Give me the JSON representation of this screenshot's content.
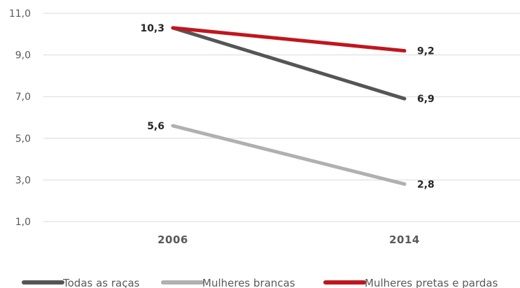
{
  "chart_data": {
    "type": "line",
    "categories": [
      "2006",
      "2014"
    ],
    "series": [
      {
        "name": "Todas as raças",
        "values": [
          10.3,
          6.9
        ],
        "labels": [
          "10,3",
          "6,9"
        ],
        "color": "#555555"
      },
      {
        "name": "Mulheres brancas",
        "values": [
          5.6,
          2.8
        ],
        "labels": [
          "5,6",
          "2,8"
        ],
        "color": "#b0b0b0"
      },
      {
        "name": "Mulheres pretas e pardas",
        "values": [
          10.3,
          9.2
        ],
        "labels": [
          "",
          "9,2"
        ],
        "color": "#c0161e"
      }
    ],
    "yticks": [
      1.0,
      3.0,
      5.0,
      7.0,
      9.0,
      11.0
    ],
    "ytick_labels": [
      "1,0",
      "3,0",
      "5,0",
      "7,0",
      "9,0",
      "11,0"
    ],
    "ylim": [
      1.0,
      11.0
    ],
    "grid": true,
    "legend_position": "bottom",
    "title": "",
    "xlabel": "",
    "ylabel": ""
  }
}
